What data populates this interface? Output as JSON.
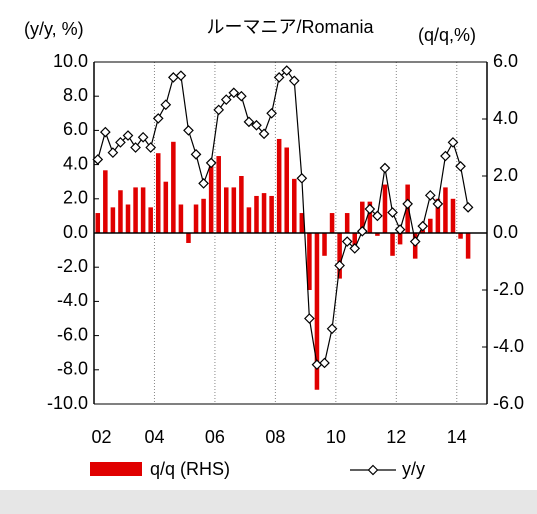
{
  "chart_data": {
    "type": "bar-line",
    "title": "ルーマニア/Romania",
    "y_label": "(y/y, %)",
    "y2_label": "(q/q,%)",
    "categories": [
      "02",
      null,
      null,
      null,
      null,
      null,
      null,
      null,
      "04",
      null,
      null,
      null,
      null,
      null,
      null,
      null,
      "06",
      null,
      null,
      null,
      null,
      null,
      null,
      null,
      "08",
      null,
      null,
      null,
      null,
      null,
      null,
      null,
      "10",
      null,
      null,
      null,
      null,
      null,
      null,
      null,
      "12",
      null,
      null,
      null,
      null,
      null,
      null,
      null,
      "14",
      null,
      null,
      null
    ],
    "series": [
      {
        "name": "q/q (RHS)",
        "type": "bar",
        "axis": "y2",
        "color": "#e00000",
        "values": [
          0.7,
          2.2,
          0.9,
          1.5,
          1.0,
          1.6,
          1.6,
          0.9,
          2.8,
          1.8,
          3.2,
          1.0,
          -0.35,
          1.0,
          1.2,
          2.4,
          2.7,
          1.6,
          1.6,
          2.0,
          0.9,
          1.3,
          1.4,
          1.3,
          3.3,
          3.0,
          1.9,
          0.7,
          -2.0,
          -5.5,
          -0.8,
          0.7,
          -1.6,
          0.7,
          -0.6,
          1.1,
          1.1,
          -0.1,
          1.7,
          -0.8,
          -0.4,
          1.7,
          -0.9,
          0.1,
          0.5,
          1.2,
          1.6,
          1.2,
          -0.2,
          -0.9,
          null,
          null
        ]
      },
      {
        "name": "y/y",
        "type": "line",
        "color": "#000000",
        "values": [
          4.3,
          5.9,
          4.7,
          5.3,
          5.7,
          5.0,
          5.6,
          5.0,
          6.7,
          7.5,
          9.1,
          9.2,
          6.0,
          4.6,
          2.9,
          4.1,
          7.2,
          7.8,
          8.2,
          8.0,
          6.5,
          6.3,
          5.8,
          7.0,
          9.1,
          9.5,
          8.9,
          3.2,
          -5.0,
          -7.7,
          -7.6,
          -5.6,
          -1.9,
          -0.5,
          -0.9,
          0.1,
          1.4,
          1.0,
          3.8,
          1.2,
          0.2,
          1.7,
          -0.5,
          0.4,
          2.2,
          1.7,
          4.5,
          5.3,
          3.9,
          1.5,
          null,
          null
        ]
      }
    ],
    "ylim": [
      -10,
      10
    ],
    "yticks": [
      {
        "value": -10,
        "label": "-10.0"
      },
      {
        "value": -8,
        "label": "-8.0"
      },
      {
        "value": -6,
        "label": "-6.0"
      },
      {
        "value": -4,
        "label": "-4.0"
      },
      {
        "value": -2,
        "label": "-2.0"
      },
      {
        "value": 0,
        "label": "0.0"
      },
      {
        "value": 2,
        "label": "2.0"
      },
      {
        "value": 4,
        "label": "4.0"
      },
      {
        "value": 6,
        "label": "6.0"
      },
      {
        "value": 8,
        "label": "8.0"
      },
      {
        "value": 10,
        "label": "10.0"
      }
    ],
    "y2lim": [
      -6,
      6
    ],
    "y2ticks": [
      {
        "value": -6,
        "label": "-6.0"
      },
      {
        "value": -4,
        "label": "-4.0"
      },
      {
        "value": -2,
        "label": "-2.0"
      },
      {
        "value": 0,
        "label": "0.0"
      },
      {
        "value": 2,
        "label": "2.0"
      },
      {
        "value": 4,
        "label": "4.0"
      },
      {
        "value": 6,
        "label": "6.0"
      }
    ]
  }
}
